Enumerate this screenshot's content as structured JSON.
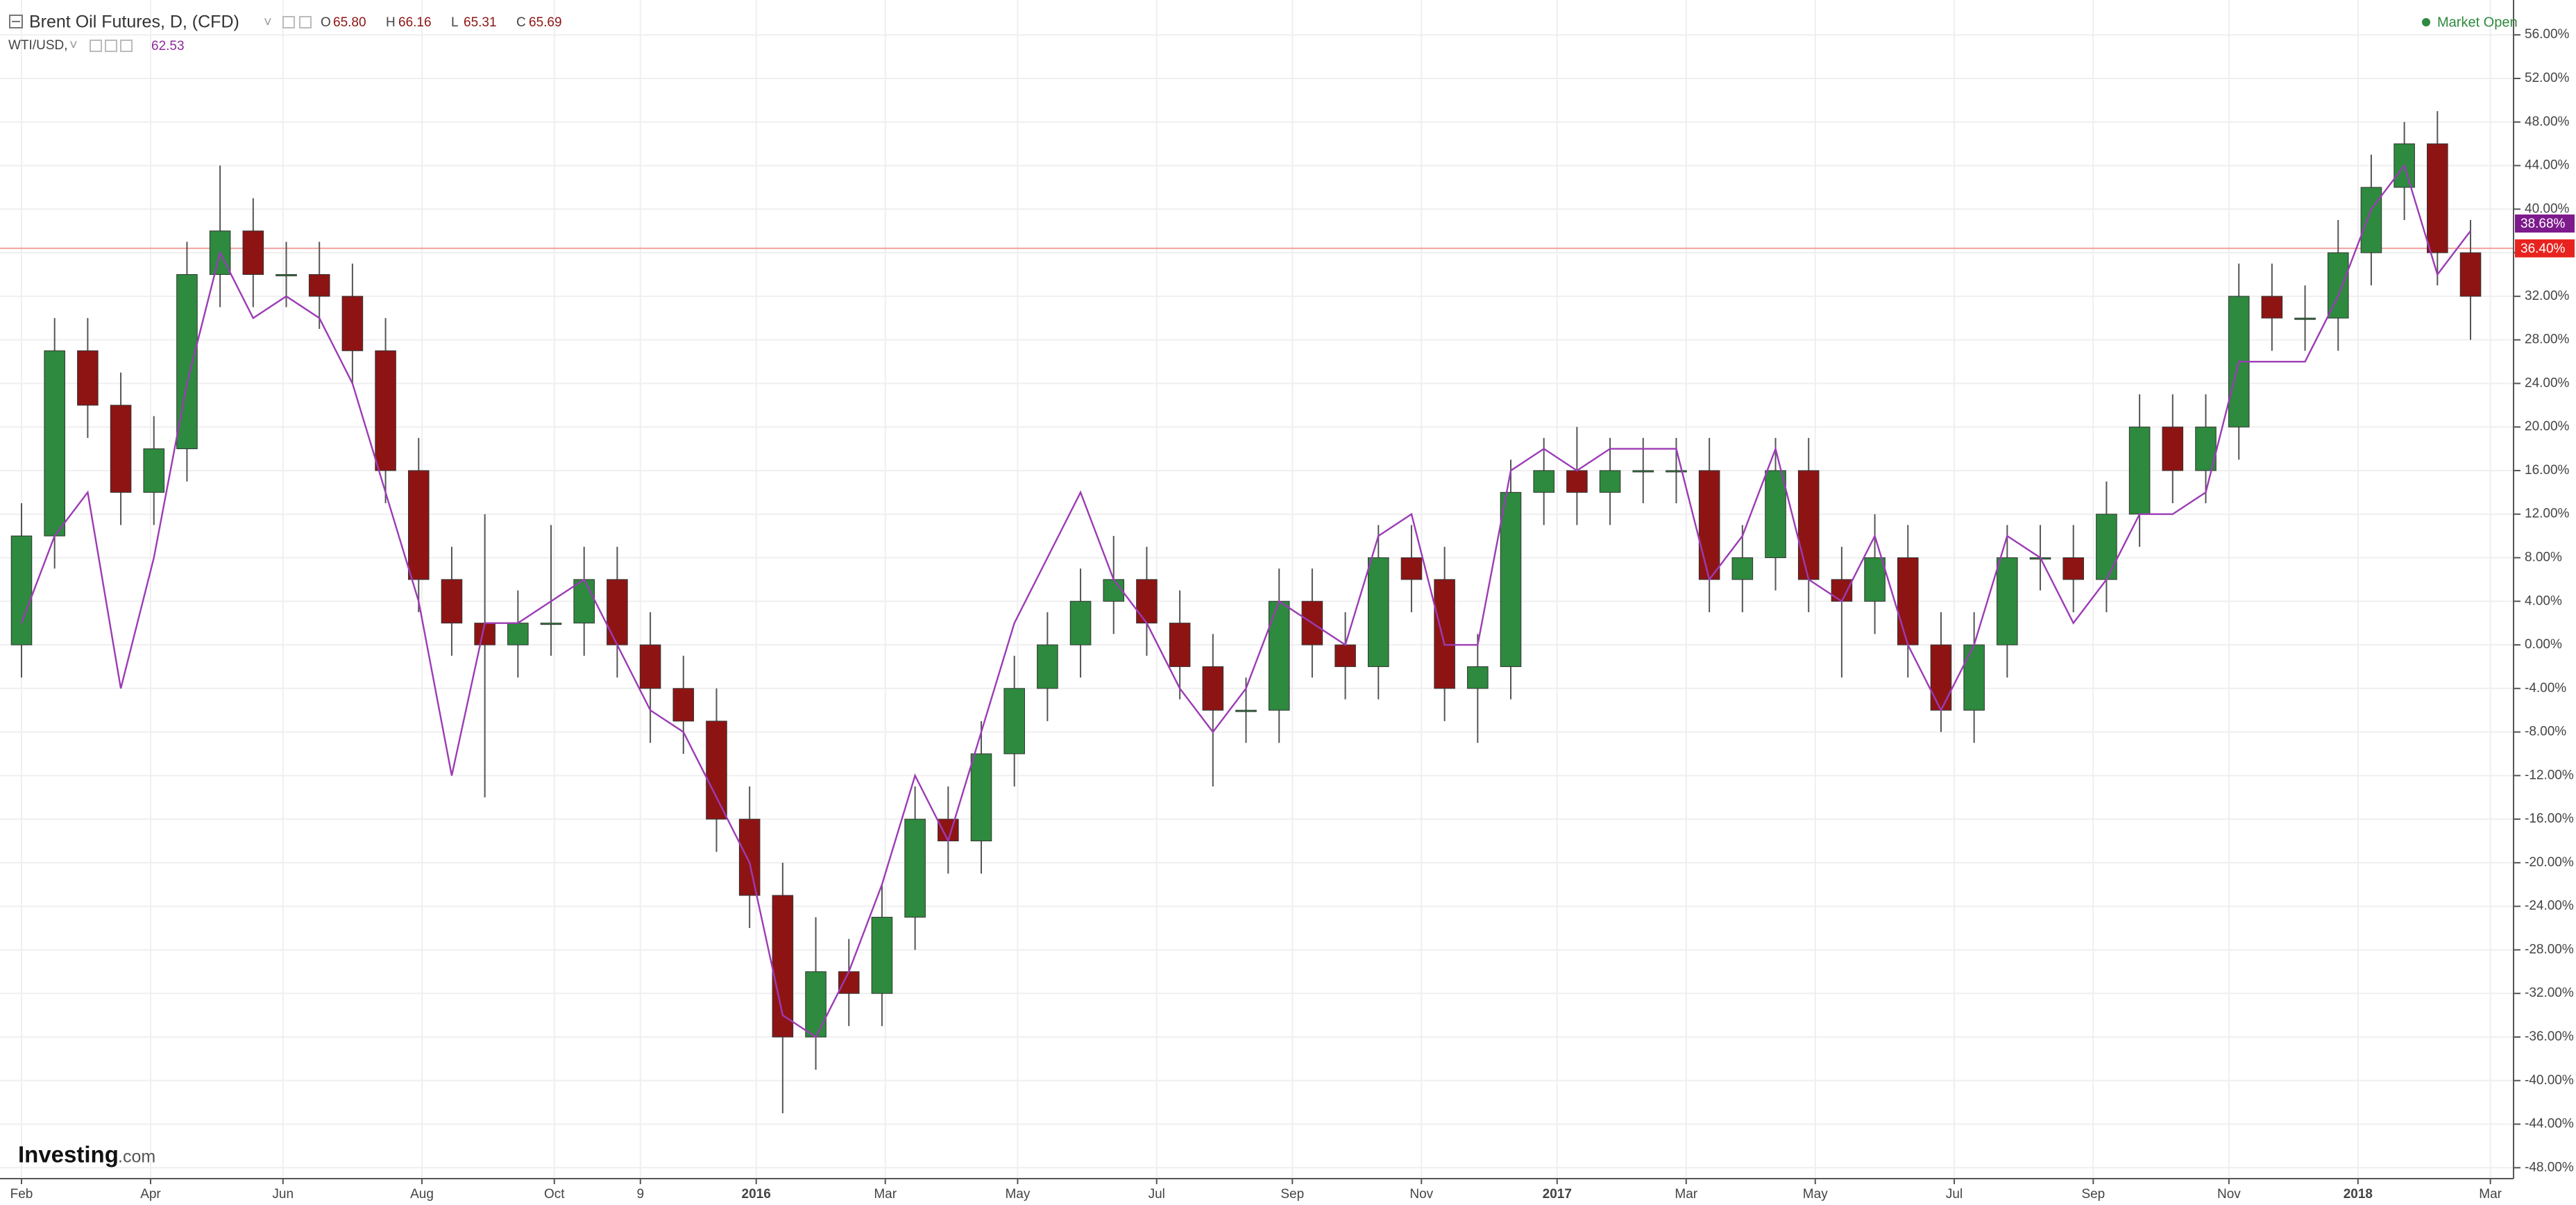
{
  "chart_data": {
    "type": "candlestick",
    "title": "Brent Oil Futures, D, (CFD)",
    "quote": [
      {
        "name": "O",
        "value": 65.8,
        "label": "65.80"
      },
      {
        "name": "H",
        "value": 66.16,
        "label": "66.16"
      },
      {
        "name": "L",
        "value": 65.31,
        "label": "65.31"
      },
      {
        "name": "C",
        "value": 65.69,
        "label": "65.69"
      }
    ],
    "compare": {
      "name": "WTI/USD,",
      "value": 62.53,
      "label": "62.53"
    },
    "status": "Market Open",
    "logo": {
      "main": "Investing",
      "suffix": ".com"
    },
    "x": [
      0,
      1,
      2,
      3,
      4,
      5,
      6,
      7,
      8,
      9,
      10,
      11,
      12,
      13,
      14,
      15,
      16,
      17,
      18,
      19,
      20,
      21,
      22,
      23,
      24,
      25,
      26,
      27,
      28,
      29,
      30,
      31,
      32,
      33,
      34,
      35,
      36,
      37,
      38,
      39,
      40,
      41,
      42,
      43,
      44,
      45,
      46,
      47,
      48,
      49,
      50,
      51,
      52,
      53,
      54,
      55,
      56,
      57,
      58,
      59,
      60,
      61,
      62,
      63,
      64,
      65,
      66,
      67,
      68,
      69,
      70,
      71,
      72,
      73,
      74
    ],
    "series": [
      {
        "name": "Brent Oil Futures",
        "type": "candlestick",
        "up_color": "#2d8a3e",
        "down_color": "#8e1414",
        "open": [
          0,
          10,
          27,
          22,
          14,
          18,
          34,
          38,
          34,
          34,
          32,
          27,
          16,
          6,
          2,
          0,
          2,
          2,
          6,
          0,
          -4,
          -7,
          -16,
          -23,
          -36,
          -30,
          -32,
          -25,
          -16,
          -18,
          -10,
          -4,
          0,
          4,
          6,
          2,
          -2,
          -6,
          -6,
          4,
          0,
          -2,
          8,
          6,
          -4,
          -2,
          14,
          16,
          14,
          16,
          16,
          16,
          6,
          8,
          16,
          6,
          4,
          8,
          0,
          -6,
          0,
          8,
          8,
          6,
          12,
          20,
          16,
          20,
          32,
          30,
          30,
          36,
          42,
          46,
          36
        ],
        "high": [
          13,
          30,
          30,
          25,
          21,
          37,
          44,
          41,
          37,
          37,
          35,
          30,
          19,
          9,
          12,
          5,
          11,
          9,
          9,
          3,
          -1,
          -4,
          -13,
          -20,
          -25,
          -27,
          -22,
          -13,
          -13,
          -7,
          -1,
          3,
          7,
          10,
          9,
          5,
          1,
          -3,
          7,
          7,
          3,
          11,
          11,
          9,
          1,
          17,
          19,
          20,
          19,
          19,
          19,
          19,
          11,
          19,
          19,
          9,
          12,
          11,
          3,
          3,
          11,
          11,
          11,
          15,
          23,
          23,
          23,
          35,
          35,
          33,
          39,
          45,
          48,
          49,
          39
        ],
        "low": [
          -3,
          7,
          19,
          11,
          11,
          15,
          31,
          31,
          31,
          29,
          24,
          13,
          3,
          -1,
          -14,
          -3,
          -1,
          -1,
          -3,
          -9,
          -10,
          -19,
          -26,
          -43,
          -39,
          -35,
          -35,
          -28,
          -21,
          -21,
          -13,
          -7,
          -3,
          1,
          -1,
          -5,
          -13,
          -9,
          -9,
          -3,
          -5,
          -5,
          3,
          -7,
          -9,
          -5,
          11,
          11,
          11,
          13,
          13,
          3,
          3,
          5,
          3,
          -3,
          1,
          -3,
          -8,
          -9,
          -3,
          5,
          3,
          3,
          9,
          13,
          13,
          17,
          27,
          27,
          27,
          33,
          39,
          33,
          28
        ],
        "close": [
          10,
          27,
          22,
          14,
          18,
          34,
          38,
          34,
          34,
          32,
          27,
          16,
          6,
          2,
          0,
          2,
          2,
          6,
          0,
          -4,
          -7,
          -16,
          -23,
          -36,
          -30,
          -32,
          -25,
          -16,
          -18,
          -10,
          -4,
          0,
          4,
          6,
          2,
          -2,
          -6,
          -6,
          4,
          0,
          -2,
          8,
          6,
          -4,
          -2,
          14,
          16,
          14,
          16,
          16,
          16,
          6,
          8,
          16,
          6,
          4,
          8,
          0,
          -6,
          0,
          8,
          8,
          6,
          12,
          20,
          16,
          20,
          32,
          30,
          30,
          36,
          42,
          46,
          36,
          32
        ]
      },
      {
        "name": "WTI/USD",
        "type": "line",
        "color": "#9c3bb5",
        "values": [
          2,
          10,
          14,
          -4,
          8,
          24,
          36,
          30,
          32,
          30,
          24,
          14,
          4,
          -12,
          2,
          2,
          4,
          6,
          0,
          -6,
          -8,
          -14,
          -20,
          -34,
          -36,
          -30,
          -22,
          -12,
          -18,
          -8,
          2,
          8,
          14,
          6,
          2,
          -4,
          -8,
          -4,
          4,
          2,
          0,
          10,
          12,
          0,
          0,
          16,
          18,
          16,
          18,
          18,
          18,
          6,
          10,
          18,
          6,
          4,
          10,
          0,
          -6,
          0,
          10,
          8,
          2,
          6,
          12,
          12,
          14,
          26,
          26,
          26,
          32,
          40,
          44,
          34,
          38
        ]
      }
    ],
    "last_labels": [
      {
        "value": 38.68,
        "label": "38.68%",
        "color": "#7d1a8c"
      },
      {
        "value": 36.4,
        "label": "36.40%",
        "color": "#e8231f"
      }
    ],
    "xlim": [
      -0.65,
      75.3
    ],
    "xticks": [
      {
        "value": 0,
        "label": "Feb"
      },
      {
        "value": 3.9,
        "label": "Apr"
      },
      {
        "value": 7.9,
        "label": "Jun"
      },
      {
        "value": 12.1,
        "label": "Aug"
      },
      {
        "value": 16.1,
        "label": "Oct"
      },
      {
        "value": 18.7,
        "label": "9"
      },
      {
        "value": 22.2,
        "label": "2016"
      },
      {
        "value": 26.1,
        "label": "Mar"
      },
      {
        "value": 30.1,
        "label": "May"
      },
      {
        "value": 34.3,
        "label": "Jul"
      },
      {
        "value": 38.4,
        "label": "Sep"
      },
      {
        "value": 42.3,
        "label": "Nov"
      },
      {
        "value": 46.4,
        "label": "2017"
      },
      {
        "value": 50.3,
        "label": "Mar"
      },
      {
        "value": 54.2,
        "label": "May"
      },
      {
        "value": 58.4,
        "label": "Jul"
      },
      {
        "value": 62.6,
        "label": "Sep"
      },
      {
        "value": 66.7,
        "label": "Nov"
      },
      {
        "value": 70.6,
        "label": "2018"
      },
      {
        "value": 74.6,
        "label": "Mar"
      }
    ],
    "ylim": [
      -49,
      59.2
    ],
    "yticks": [
      {
        "value": 56,
        "label": "56.00%"
      },
      {
        "value": 52,
        "label": "52.00%"
      },
      {
        "value": 48,
        "label": "48.00%"
      },
      {
        "value": 44,
        "label": "44.00%"
      },
      {
        "value": 40,
        "label": "40.00%"
      },
      {
        "value": 36,
        "label": "36.00%"
      },
      {
        "value": 32,
        "label": "32.00%"
      },
      {
        "value": 28,
        "label": "28.00%"
      },
      {
        "value": 24,
        "label": "24.00%"
      },
      {
        "value": 20,
        "label": "20.00%"
      },
      {
        "value": 16,
        "label": "16.00%"
      },
      {
        "value": 12,
        "label": "12.00%"
      },
      {
        "value": 8,
        "label": "8.00%"
      },
      {
        "value": 4,
        "label": "4.00%"
      },
      {
        "value": 0,
        "label": "0.00%"
      },
      {
        "value": -4,
        "label": "-4.00%"
      },
      {
        "value": -8,
        "label": "-8.00%"
      },
      {
        "value": -12,
        "label": "-12.00%"
      },
      {
        "value": -16,
        "label": "-16.00%"
      },
      {
        "value": -20,
        "label": "-20.00%"
      },
      {
        "value": -24,
        "label": "-24.00%"
      },
      {
        "value": -28,
        "label": "-28.00%"
      },
      {
        "value": -32,
        "label": "-32.00%"
      },
      {
        "value": -36,
        "label": "-36.00%"
      },
      {
        "value": -40,
        "label": "-40.00%"
      },
      {
        "value": -44,
        "label": "-44.00%"
      },
      {
        "value": -48,
        "label": "-48.00%"
      }
    ],
    "grid": true
  }
}
